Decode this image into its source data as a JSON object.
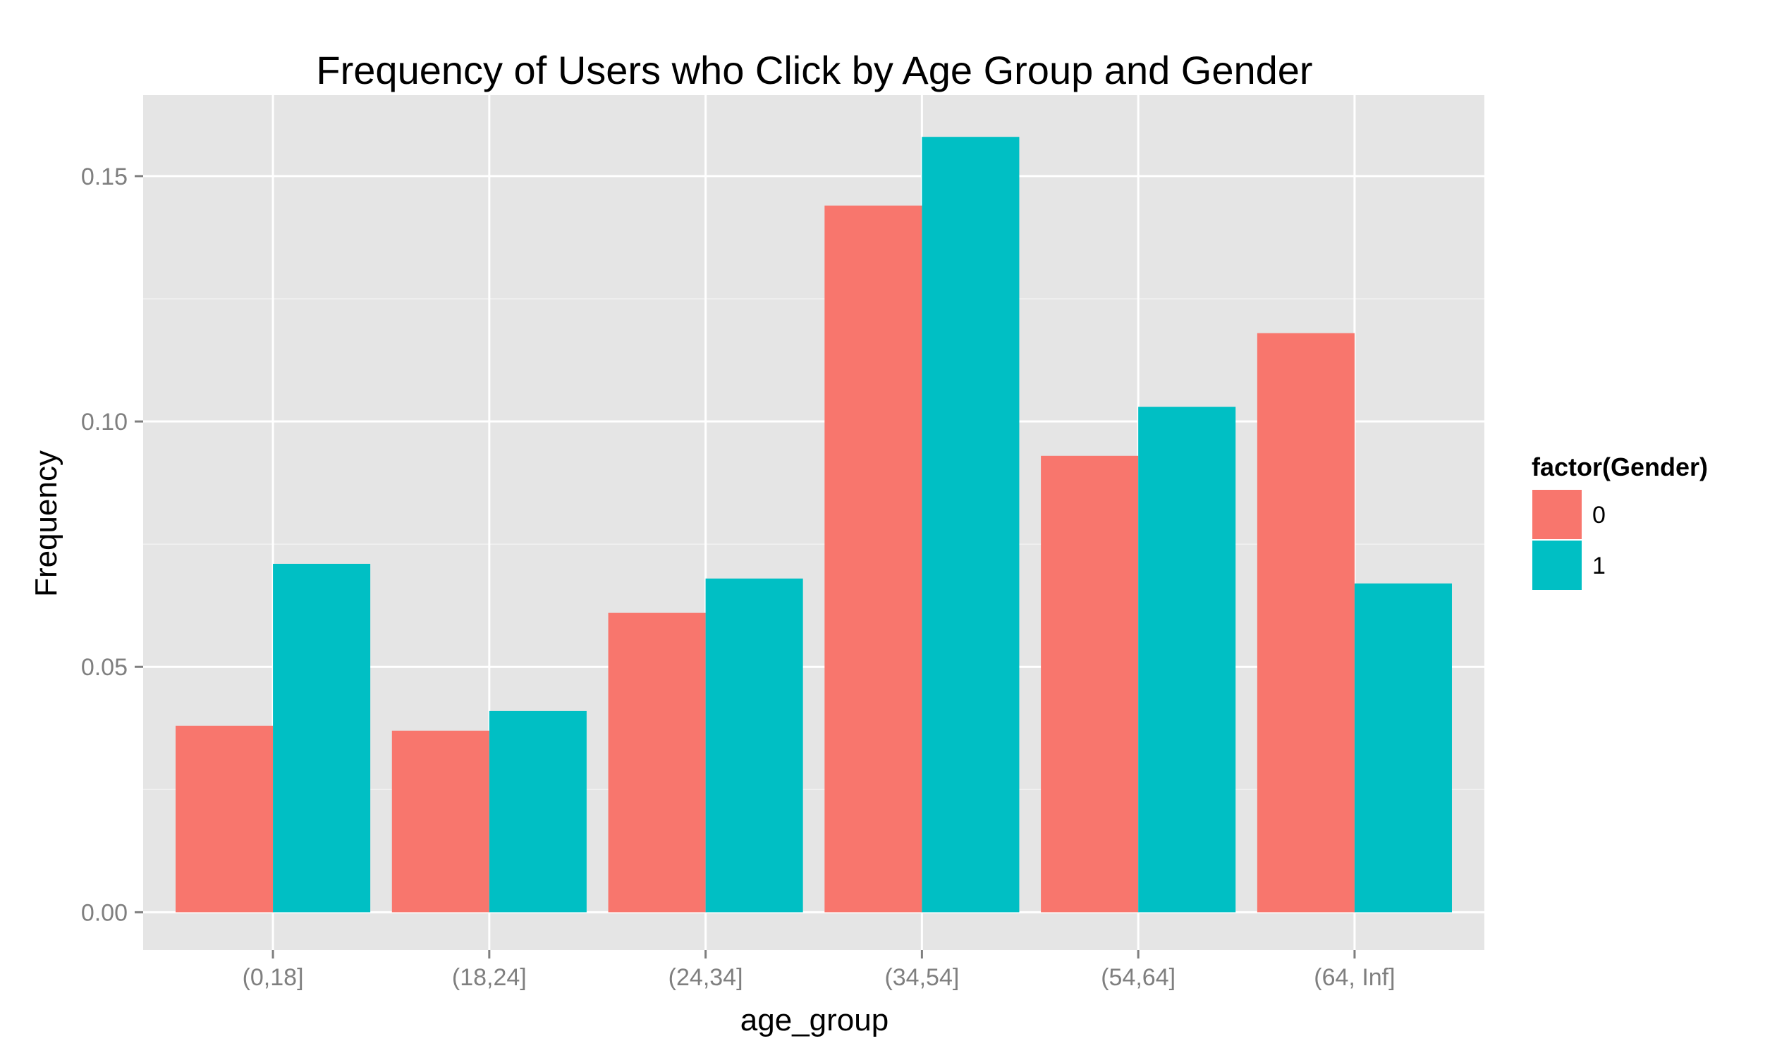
{
  "chart_data": {
    "type": "bar",
    "title": "Frequency of Users who Click by Age Group and Gender",
    "xlabel": "age_group",
    "ylabel": "Frequency",
    "categories": [
      "(0,18]",
      "(18,24]",
      "(24,34]",
      "(34,54]",
      "(54,64]",
      "(64, Inf]"
    ],
    "series": [
      {
        "name": "0",
        "color": "#F8766D",
        "values": [
          0.038,
          0.037,
          0.061,
          0.144,
          0.093,
          0.118
        ]
      },
      {
        "name": "1",
        "color": "#00BFC4",
        "values": [
          0.071,
          0.041,
          0.068,
          0.158,
          0.103,
          0.067
        ]
      }
    ],
    "ylim": [
      -0.0077,
      0.1665
    ],
    "y_ticks": [
      0.0,
      0.05,
      0.1,
      0.15
    ],
    "y_tick_labels": [
      "0.00",
      "0.05",
      "0.10",
      "0.15"
    ],
    "legend": {
      "title": "factor(Gender)",
      "position": "right"
    },
    "grid": true,
    "panel_background": "#E5E5E5",
    "grid_color": "#FFFFFF"
  }
}
